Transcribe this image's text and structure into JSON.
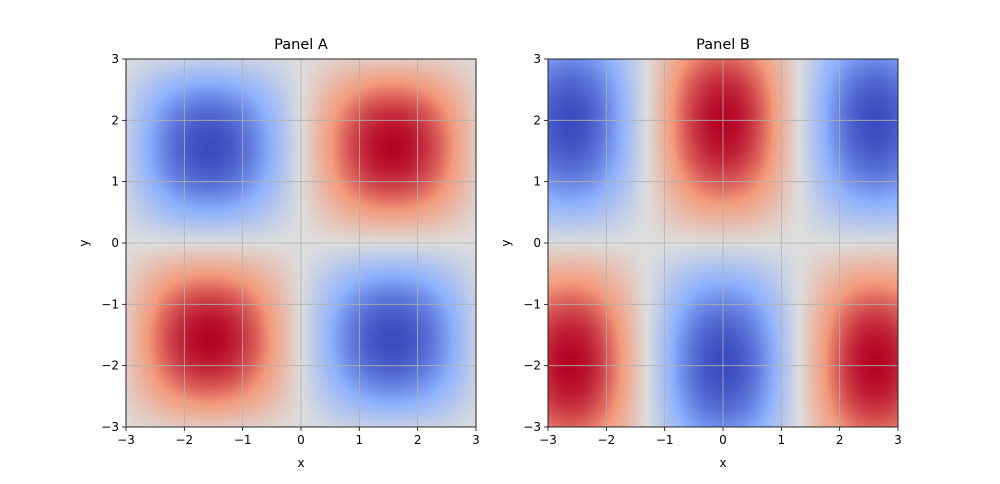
{
  "chart_data": [
    {
      "type": "heatmap",
      "title": "Panel A",
      "xlabel": "x",
      "ylabel": "y",
      "xlim": [
        -3,
        3
      ],
      "ylim": [
        -3,
        3
      ],
      "xticks": [
        "−3",
        "−2",
        "−1",
        "0",
        "1",
        "2",
        "3"
      ],
      "yticks": [
        "−3",
        "−2",
        "−1",
        "0",
        "1",
        "2",
        "3"
      ],
      "z": "sin(x)*sin(y)",
      "colormap": "coolwarm",
      "grid": true
    },
    {
      "type": "heatmap",
      "title": "Panel B",
      "xlabel": "x",
      "ylabel": "y",
      "xlim": [
        -3,
        3
      ],
      "ylim": [
        -3,
        3
      ],
      "xticks": [
        "−3",
        "−2",
        "−1",
        "0",
        "1",
        "2",
        "3"
      ],
      "yticks": [
        "−3",
        "−2",
        "−1",
        "0",
        "1",
        "2",
        "3"
      ],
      "z": "cos(1.2*x)*sin(0.8*y)",
      "colormap": "coolwarm",
      "grid": true
    }
  ],
  "colors": {
    "grid": "#b0b0b0",
    "low": "#3b4cc0",
    "mid": "#dddddd",
    "high": "#b40426"
  }
}
